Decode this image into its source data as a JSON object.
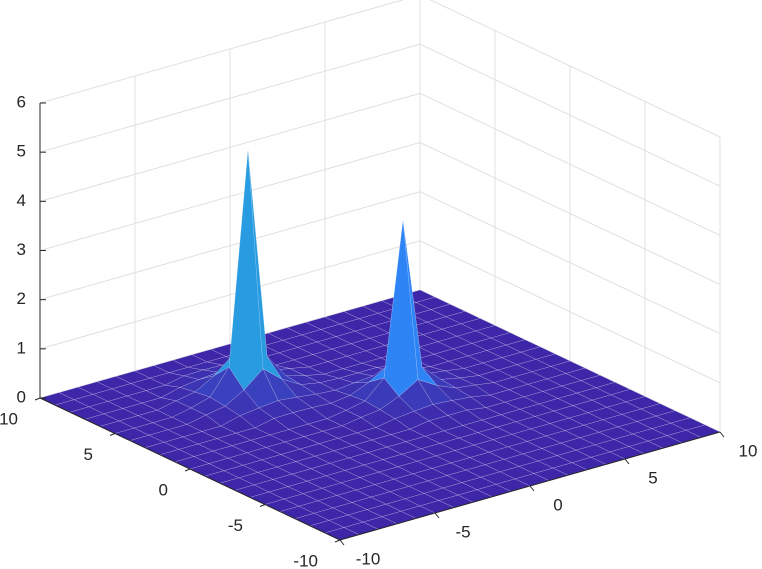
{
  "chart_data": {
    "type": "surface",
    "x": [
      -10,
      -9,
      -8,
      -7,
      -6,
      -5,
      -4,
      -3,
      -2,
      -1,
      0,
      1,
      2,
      3,
      4,
      5,
      6,
      7,
      8,
      9,
      10
    ],
    "y": [
      -10,
      -9,
      -8,
      -7,
      -6,
      -5,
      -4,
      -3,
      -2,
      -1,
      0,
      1,
      2,
      3,
      4,
      5,
      6,
      7,
      8,
      9,
      10
    ],
    "z": [
      [
        0,
        0,
        0,
        0,
        0,
        0,
        0,
        0,
        0,
        0,
        0,
        0,
        0,
        0,
        0,
        0,
        0,
        0,
        0,
        0,
        0
      ],
      [
        0,
        0,
        0,
        0,
        0,
        0,
        0,
        0,
        0,
        0,
        0,
        0,
        0,
        0,
        0,
        0,
        0,
        0,
        0,
        0,
        0
      ],
      [
        0,
        0,
        0,
        0,
        0,
        0,
        0,
        0,
        0,
        0,
        0,
        0,
        0,
        0,
        0,
        0,
        0,
        0,
        0,
        0,
        0
      ],
      [
        0,
        0,
        0,
        0,
        0,
        0,
        0,
        0,
        0,
        0,
        0,
        0,
        0,
        0,
        0,
        0,
        0,
        0,
        0,
        0,
        0
      ],
      [
        0,
        0,
        0,
        0,
        0,
        0,
        0,
        0,
        0,
        0,
        0,
        0,
        0,
        0,
        0,
        0,
        0,
        0,
        0,
        0,
        0
      ],
      [
        0,
        0,
        0,
        0,
        0,
        0,
        0,
        0,
        0,
        0,
        0,
        0,
        0,
        0,
        0,
        0,
        0,
        0,
        0,
        0,
        0
      ],
      [
        0,
        0,
        0,
        0,
        0,
        0,
        0,
        0,
        0,
        0,
        0,
        0,
        0,
        0,
        0,
        0,
        0,
        0,
        0,
        0,
        0
      ],
      [
        0,
        0,
        0,
        0,
        0,
        0,
        0,
        0,
        0,
        0,
        0,
        0,
        0,
        0,
        0,
        0,
        0,
        0,
        0,
        0,
        0
      ],
      [
        0,
        0,
        0,
        0,
        0,
        0,
        0,
        0,
        0,
        0,
        0,
        0.06,
        0.06,
        0.06,
        0,
        0,
        0,
        0,
        0,
        0,
        0
      ],
      [
        0,
        0,
        0,
        0,
        0,
        0,
        0,
        0,
        0,
        0,
        0.07,
        0.11,
        0.14,
        0.11,
        0.07,
        0,
        0,
        0,
        0,
        0,
        0
      ],
      [
        0,
        0,
        0,
        0,
        0,
        0,
        0,
        0,
        0,
        0.06,
        0.11,
        0.27,
        0.5,
        0.27,
        0.11,
        0.06,
        0,
        0,
        0,
        0,
        0
      ],
      [
        0,
        0,
        0,
        0,
        0,
        0,
        0,
        0,
        0,
        0.06,
        0.14,
        0.5,
        3.6,
        0.5,
        0.14,
        0.06,
        0,
        0,
        0,
        0,
        0
      ],
      [
        0,
        0,
        0,
        0,
        0,
        0,
        0.08,
        0.09,
        0.08,
        0.06,
        0.11,
        0.27,
        0.5,
        0.27,
        0.11,
        0.06,
        0,
        0,
        0,
        0,
        0
      ],
      [
        0,
        0,
        0,
        0,
        0,
        0.1,
        0.15,
        0.19,
        0.15,
        0.1,
        0.07,
        0.11,
        0.14,
        0.11,
        0.07,
        0,
        0,
        0,
        0,
        0,
        0
      ],
      [
        0,
        0,
        0,
        0,
        0.08,
        0.15,
        0.37,
        0.69,
        0.37,
        0.15,
        0.08,
        0.06,
        0.06,
        0.06,
        0,
        0,
        0,
        0,
        0,
        0,
        0
      ],
      [
        0,
        0,
        0,
        0,
        0.08,
        0.19,
        0.69,
        5,
        0.69,
        0.19,
        0.08,
        0,
        0,
        0,
        0,
        0,
        0,
        0,
        0,
        0,
        0
      ],
      [
        0,
        0,
        0,
        0,
        0.08,
        0.15,
        0.37,
        0.69,
        0.37,
        0.15,
        0.08,
        0,
        0,
        0,
        0,
        0,
        0,
        0,
        0,
        0,
        0
      ],
      [
        0,
        0,
        0,
        0,
        0,
        0.1,
        0.15,
        0.19,
        0.15,
        0.1,
        0,
        0,
        0,
        0,
        0,
        0,
        0,
        0,
        0,
        0,
        0
      ],
      [
        0,
        0,
        0,
        0,
        0,
        0,
        0.08,
        0.09,
        0.08,
        0,
        0,
        0,
        0,
        0,
        0,
        0,
        0,
        0,
        0,
        0,
        0
      ],
      [
        0,
        0,
        0,
        0,
        0,
        0,
        0,
        0,
        0,
        0,
        0,
        0,
        0,
        0,
        0,
        0,
        0,
        0,
        0,
        0,
        0
      ],
      [
        0,
        0,
        0,
        0,
        0,
        0,
        0,
        0,
        0,
        0,
        0,
        0,
        0,
        0,
        0,
        0,
        0,
        0,
        0,
        0,
        0
      ]
    ],
    "xlim": [
      -10,
      10
    ],
    "ylim": [
      -10,
      10
    ],
    "zlim": [
      0,
      6
    ],
    "xticks": [
      -10,
      -5,
      0,
      5,
      10
    ],
    "yticks": [
      -10,
      -5,
      0,
      5,
      10
    ],
    "zticks": [
      0,
      1,
      2,
      3,
      4,
      5,
      6
    ],
    "grid": true,
    "colormap": [
      "#3e26a8",
      "#2e87f7",
      "#1ebfb9",
      "#99d63d",
      "#f9fb0e"
    ]
  }
}
